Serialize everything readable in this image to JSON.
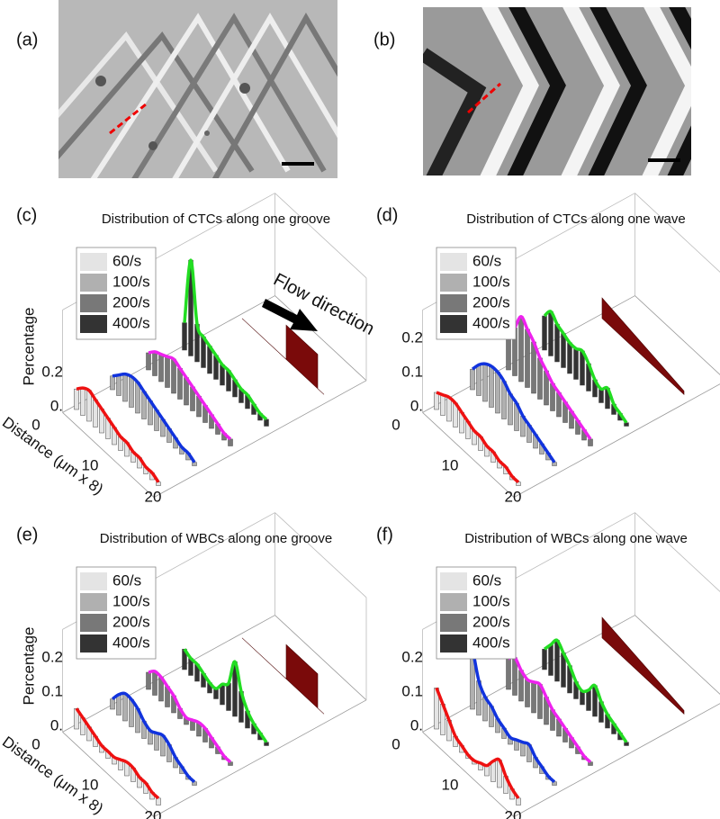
{
  "figure": {
    "images": [
      {
        "label": "(a)"
      },
      {
        "label": "(b)"
      }
    ],
    "panels": [
      {
        "label": "(c)",
        "title": "Distribution of CTCs along one groove",
        "ylabel": "Percentage",
        "xlabel": "Distance (μm x 8)",
        "ytick_labels": [
          "0.",
          "0.2"
        ],
        "xtick_labels": [
          "0",
          "10",
          "20"
        ],
        "annotation": "Flow direction",
        "wall": "flat",
        "series": [
          {
            "name": "60/s",
            "color": "#e4e4e4",
            "curve_color": "#ee1111",
            "values": [
              0.06,
              0.08,
              0.09,
              0.08,
              0.07,
              0.06,
              0.05,
              0.04,
              0.04,
              0.03,
              0.03,
              0.02,
              0.02,
              0.01
            ]
          },
          {
            "name": "100/s",
            "color": "#b0b0b0",
            "curve_color": "#1133dd",
            "values": [
              0.04,
              0.06,
              0.08,
              0.09,
              0.09,
              0.08,
              0.07,
              0.06,
              0.05,
              0.04,
              0.03,
              0.02,
              0.02,
              0.01
            ]
          },
          {
            "name": "200/s",
            "color": "#787878",
            "curve_color": "#ee22ee",
            "values": [
              0.05,
              0.07,
              0.08,
              0.09,
              0.1,
              0.09,
              0.08,
              0.07,
              0.06,
              0.05,
              0.04,
              0.03,
              0.02,
              0.02
            ]
          },
          {
            "name": "400/s",
            "color": "#333333",
            "curve_color": "#22dd22",
            "values": [
              0.08,
              0.28,
              0.11,
              0.09,
              0.08,
              0.07,
              0.06,
              0.06,
              0.05,
              0.04,
              0.04,
              0.03,
              0.02,
              0.02
            ]
          }
        ]
      },
      {
        "label": "(d)",
        "title": "Distribution of CTCs along one wave",
        "ylabel": null,
        "xlabel": null,
        "ytick_labels": [
          "0.",
          "0.1",
          "0.2"
        ],
        "xtick_labels": [
          "0",
          "10",
          "20"
        ],
        "annotation": null,
        "wall": "ramp",
        "series": [
          {
            "name": "60/s",
            "color": "#e4e4e4",
            "curve_color": "#ee1111",
            "values": [
              0.05,
              0.06,
              0.07,
              0.07,
              0.06,
              0.05,
              0.04,
              0.04,
              0.03,
              0.03,
              0.02,
              0.02,
              0.01,
              0.01
            ]
          },
          {
            "name": "100/s",
            "color": "#b0b0b0",
            "curve_color": "#1133dd",
            "values": [
              0.06,
              0.09,
              0.11,
              0.12,
              0.12,
              0.11,
              0.09,
              0.08,
              0.06,
              0.05,
              0.04,
              0.03,
              0.02,
              0.01
            ]
          },
          {
            "name": "200/s",
            "color": "#787878",
            "curve_color": "#ee22ee",
            "values": [
              0.09,
              0.14,
              0.19,
              0.17,
              0.15,
              0.12,
              0.1,
              0.08,
              0.07,
              0.06,
              0.05,
              0.04,
              0.03,
              0.02
            ]
          },
          {
            "name": "400/s",
            "color": "#333333",
            "curve_color": "#22dd22",
            "values": [
              0.1,
              0.13,
              0.11,
              0.1,
              0.09,
              0.09,
              0.1,
              0.08,
              0.05,
              0.04,
              0.06,
              0.03,
              0.02,
              0.01
            ]
          }
        ]
      },
      {
        "label": "(e)",
        "title": "Distribution of WBCs along one groove",
        "ylabel": "Percentage",
        "xlabel": "Distance (μm x 8)",
        "ytick_labels": [
          "0.",
          "0.1",
          "0.2"
        ],
        "xtick_labels": [
          "0",
          "10",
          "20"
        ],
        "annotation": null,
        "wall": "flat",
        "series": [
          {
            "name": "60/s",
            "color": "#e4e4e4",
            "curve_color": "#ee1111",
            "values": [
              0.06,
              0.05,
              0.04,
              0.03,
              0.02,
              0.02,
              0.02,
              0.03,
              0.04,
              0.04,
              0.03,
              0.03,
              0.02,
              0.02
            ]
          },
          {
            "name": "100/s",
            "color": "#b0b0b0",
            "curve_color": "#1133dd",
            "values": [
              0.03,
              0.06,
              0.08,
              0.08,
              0.07,
              0.05,
              0.04,
              0.05,
              0.06,
              0.05,
              0.03,
              0.02,
              0.01,
              0.01
            ]
          },
          {
            "name": "200/s",
            "color": "#787878",
            "curve_color": "#ee22ee",
            "values": [
              0.05,
              0.07,
              0.07,
              0.06,
              0.05,
              0.03,
              0.02,
              0.03,
              0.04,
              0.04,
              0.03,
              0.02,
              0.01,
              0.01
            ]
          },
          {
            "name": "400/s",
            "color": "#333333",
            "curve_color": "#22dd22",
            "values": [
              0.06,
              0.05,
              0.05,
              0.04,
              0.03,
              0.03,
              0.06,
              0.08,
              0.16,
              0.09,
              0.05,
              0.03,
              0.02,
              0.01
            ]
          }
        ]
      },
      {
        "label": "(f)",
        "title": "Distribution of WBCs along one wave",
        "ylabel": null,
        "xlabel": null,
        "ytick_labels": [
          "0.",
          "0.1",
          "0.2"
        ],
        "xtick_labels": [
          "0",
          "10",
          "20"
        ],
        "annotation": null,
        "wall": "ramp",
        "series": [
          {
            "name": "60/s",
            "color": "#e4e4e4",
            "curve_color": "#ee1111",
            "values": [
              0.12,
              0.09,
              0.06,
              0.03,
              0.02,
              0.01,
              0.01,
              0.02,
              0.03,
              0.06,
              0.08,
              0.05,
              0.03,
              0.02
            ]
          },
          {
            "name": "100/s",
            "color": "#b0b0b0",
            "curve_color": "#1133dd",
            "values": [
              0.18,
              0.1,
              0.07,
              0.06,
              0.04,
              0.03,
              0.02,
              0.03,
              0.04,
              0.05,
              0.03,
              0.02,
              0.01,
              0.01
            ]
          },
          {
            "name": "200/s",
            "color": "#787878",
            "curve_color": "#ee22ee",
            "values": [
              0.09,
              0.11,
              0.09,
              0.08,
              0.09,
              0.1,
              0.08,
              0.06,
              0.05,
              0.04,
              0.03,
              0.02,
              0.01,
              0.01
            ]
          },
          {
            "name": "400/s",
            "color": "#333333",
            "curve_color": "#22dd22",
            "values": [
              0.06,
              0.09,
              0.12,
              0.1,
              0.08,
              0.05,
              0.04,
              0.06,
              0.09,
              0.06,
              0.04,
              0.03,
              0.02,
              0.01
            ]
          }
        ]
      }
    ]
  }
}
